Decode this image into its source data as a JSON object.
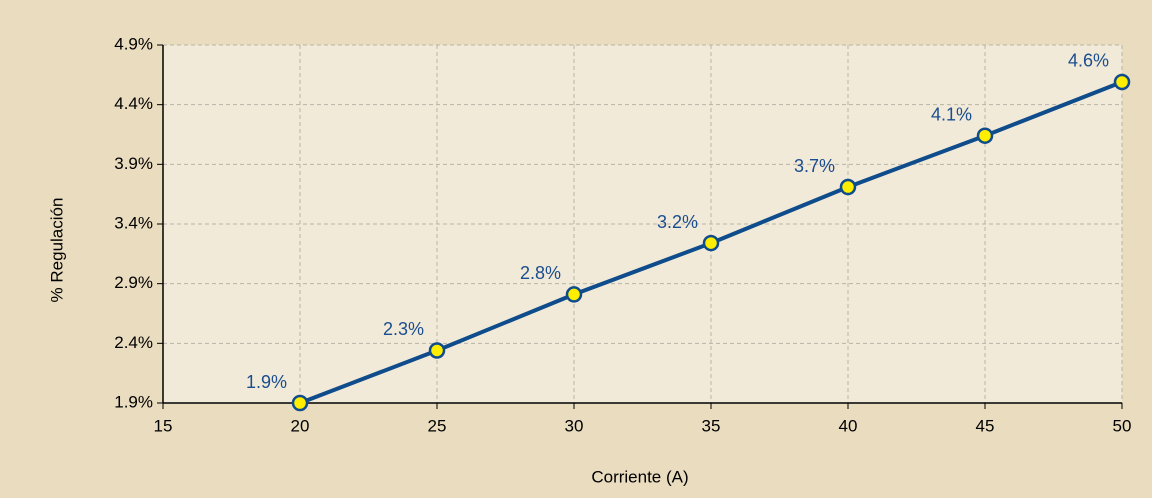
{
  "chart_data": {
    "type": "line",
    "x_label": "Corriente (A)",
    "y_label": "% Regulación",
    "x": [
      20,
      25,
      30,
      35,
      40,
      45,
      50
    ],
    "values": [
      1.9,
      2.34,
      2.81,
      3.24,
      3.71,
      4.14,
      4.59
    ],
    "value_labels": [
      "1.9%",
      "2.3%",
      "2.8%",
      "3.2%",
      "3.7%",
      "4.1%",
      "4.6%"
    ],
    "color": "#0f4c8c",
    "marker_color": "#ffee00",
    "xlim": [
      15,
      50
    ],
    "xticks": [
      15,
      20,
      25,
      30,
      35,
      40,
      45,
      50
    ],
    "ylim": [
      1.9,
      4.9
    ],
    "yticks": [
      {
        "value": 1.9,
        "label": "1.9%"
      },
      {
        "value": 2.4,
        "label": "2.4%"
      },
      {
        "value": 2.9,
        "label": "2.9%"
      },
      {
        "value": 3.4,
        "label": "3.4%"
      },
      {
        "value": 3.9,
        "label": "3.9%"
      },
      {
        "value": 4.4,
        "label": "4.4%"
      },
      {
        "value": 4.9,
        "label": "4.9%"
      }
    ],
    "grid": true
  }
}
